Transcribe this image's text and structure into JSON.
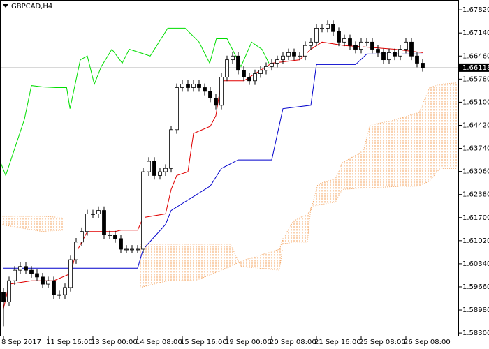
{
  "chart_data": {
    "type": "candlestick",
    "title": "GBPCAD,H4",
    "bull_color": "#ffffff",
    "bear_color": "#000000",
    "open": [
      1.595,
      1.5922,
      1.5984,
      1.6015,
      1.6026,
      1.6015,
      1.6005,
      1.5995,
      1.5974,
      1.5984,
      1.5943,
      1.5943,
      1.5964,
      1.6046,
      1.6098,
      1.6129,
      1.6181,
      1.6181,
      1.6191,
      1.6119,
      1.6119,
      1.6108,
      1.6077,
      1.6077,
      1.6077,
      1.6077,
      1.6305,
      1.6336,
      1.6294,
      1.6305,
      1.6315,
      1.6429,
      1.6553,
      1.6563,
      1.6553,
      1.6563,
      1.6553,
      1.6542,
      1.6522,
      1.6501,
      1.6584,
      1.6635,
      1.6646,
      1.6604,
      1.6584,
      1.6573,
      1.6594,
      1.6604,
      1.6615,
      1.6625,
      1.6635,
      1.6646,
      1.6656,
      1.6646,
      1.6646,
      1.6677,
      1.6687,
      1.6728,
      1.6728,
      1.6739,
      1.6718,
      1.6687,
      1.6697,
      1.6677,
      1.6666,
      1.6687,
      1.6687,
      1.6666,
      1.6656,
      1.6635,
      1.6656,
      1.6646,
      1.6666,
      1.6687,
      1.6646,
      1.6625
    ],
    "high": [
      1.5962,
      1.5996,
      1.6027,
      1.6038,
      1.6038,
      1.6027,
      1.6017,
      1.6007,
      1.5996,
      1.5996,
      1.5955,
      1.5976,
      1.6058,
      1.611,
      1.6141,
      1.6193,
      1.6193,
      1.6203,
      1.6203,
      1.6131,
      1.6131,
      1.612,
      1.6089,
      1.6089,
      1.6089,
      1.6317,
      1.6348,
      1.6348,
      1.6317,
      1.6327,
      1.6441,
      1.6565,
      1.6575,
      1.6575,
      1.6575,
      1.6575,
      1.6565,
      1.6554,
      1.6534,
      1.6596,
      1.6647,
      1.6658,
      1.6658,
      1.6616,
      1.6596,
      1.6606,
      1.6616,
      1.6627,
      1.6637,
      1.6647,
      1.6658,
      1.6668,
      1.6668,
      1.6658,
      1.6689,
      1.6699,
      1.674,
      1.674,
      1.6751,
      1.6751,
      1.673,
      1.6709,
      1.6709,
      1.6689,
      1.6699,
      1.6699,
      1.6699,
      1.6678,
      1.6668,
      1.6668,
      1.6668,
      1.6678,
      1.6699,
      1.6699,
      1.6658,
      1.6637
    ],
    "low": [
      1.585,
      1.591,
      1.5972,
      1.6003,
      1.6003,
      1.5993,
      1.5983,
      1.5962,
      1.5962,
      1.5931,
      1.5931,
      1.5931,
      1.5952,
      1.6034,
      1.6086,
      1.6117,
      1.6169,
      1.6169,
      1.6107,
      1.6107,
      1.6096,
      1.6065,
      1.6065,
      1.6065,
      1.6065,
      1.6065,
      1.6293,
      1.6282,
      1.6282,
      1.6293,
      1.6303,
      1.6417,
      1.6541,
      1.6541,
      1.6541,
      1.6541,
      1.653,
      1.651,
      1.6489,
      1.6489,
      1.6572,
      1.6623,
      1.6592,
      1.6572,
      1.6561,
      1.6561,
      1.6582,
      1.6592,
      1.6603,
      1.6613,
      1.6623,
      1.6634,
      1.6634,
      1.6634,
      1.6634,
      1.6665,
      1.6675,
      1.6716,
      1.6716,
      1.6706,
      1.6675,
      1.6675,
      1.6665,
      1.6654,
      1.6654,
      1.6675,
      1.6654,
      1.6644,
      1.6623,
      1.6623,
      1.6634,
      1.6634,
      1.6654,
      1.6634,
      1.6613,
      1.66
    ],
    "close": [
      1.5922,
      1.5984,
      1.6015,
      1.6026,
      1.6015,
      1.6005,
      1.5995,
      1.5974,
      1.5984,
      1.5943,
      1.5943,
      1.5964,
      1.6046,
      1.6098,
      1.6129,
      1.6181,
      1.6181,
      1.6191,
      1.6119,
      1.6119,
      1.6108,
      1.6077,
      1.6077,
      1.6077,
      1.6077,
      1.6305,
      1.6336,
      1.6294,
      1.6305,
      1.6315,
      1.6429,
      1.6553,
      1.6563,
      1.6553,
      1.6563,
      1.6553,
      1.6542,
      1.6522,
      1.6501,
      1.6584,
      1.6635,
      1.6646,
      1.6604,
      1.6584,
      1.6573,
      1.6594,
      1.6604,
      1.6615,
      1.6625,
      1.6635,
      1.6646,
      1.6656,
      1.6646,
      1.6646,
      1.6677,
      1.6687,
      1.6728,
      1.6728,
      1.6739,
      1.6718,
      1.6687,
      1.6697,
      1.6677,
      1.6666,
      1.6687,
      1.6687,
      1.6666,
      1.6656,
      1.6635,
      1.6656,
      1.6646,
      1.6666,
      1.6687,
      1.6646,
      1.6625,
      1.6612
    ],
    "lines": [
      {
        "color": "#e00000",
        "x": [
          0,
          1,
          5,
          9,
          12,
          13,
          15,
          20,
          21,
          24,
          25,
          29,
          30,
          31,
          33,
          34,
          37,
          38,
          39,
          43,
          48,
          53,
          55,
          57,
          61,
          70,
          75
        ],
        "values": [
          1.5902,
          1.5974,
          1.5984,
          1.5984,
          1.6005,
          1.6067,
          1.6129,
          1.6129,
          1.6133,
          1.6133,
          1.617,
          1.6181,
          1.6253,
          1.6294,
          1.6305,
          1.6418,
          1.6439,
          1.647,
          1.6573,
          1.6573,
          1.6625,
          1.6635,
          1.6666,
          1.6687,
          1.6677,
          1.6666,
          1.6656
        ]
      },
      {
        "color": "#0000cc",
        "x": [
          0,
          24,
          25,
          29,
          30,
          37,
          39,
          42,
          48,
          50,
          55,
          56,
          63,
          65,
          75
        ],
        "values": [
          1.6021,
          1.6021,
          1.6077,
          1.615,
          1.6191,
          1.6263,
          1.6315,
          1.634,
          1.634,
          1.6491,
          1.6501,
          1.6621,
          1.6621,
          1.6652,
          1.6652
        ]
      },
      {
        "color": "#00dd00",
        "x": [
          -0.6,
          0.4,
          3.75,
          5,
          7,
          9.4,
          11.3,
          11.9,
          13.75,
          15,
          16.25,
          17.5,
          19.4,
          21.25,
          22.5,
          24.4,
          26.25,
          29.4,
          32.5,
          35,
          36.9,
          38.1,
          40,
          41.25,
          42.5,
          44.4,
          46.25,
          47.5
        ],
        "values": [
          1.6336,
          1.6294,
          1.646,
          1.6559,
          1.6555,
          1.6553,
          1.6553,
          1.6491,
          1.6635,
          1.6646,
          1.6563,
          1.6615,
          1.6666,
          1.6625,
          1.6666,
          1.6656,
          1.6646,
          1.6728,
          1.6728,
          1.6687,
          1.6625,
          1.6697,
          1.6697,
          1.6656,
          1.6615,
          1.6687,
          1.6666,
          1.6625
        ]
      }
    ],
    "cloud": {
      "color": "#f4a460",
      "x": [
        -0.6,
        6.9,
        10.6,
        17.5,
        24.4,
        29.4,
        34.4,
        40.6,
        42.5,
        49.4,
        50,
        51.9,
        54.4,
        55,
        56.25,
        59.4,
        60.6,
        64.4,
        65.6,
        69.4,
        74.4,
        76.25,
        78.1,
        81.25
      ],
      "span_a": [
        1.615,
        1.6129,
        1.6133,
        null,
        1.5964,
        1.5984,
        1.5984,
        1.6026,
        1.6042,
        1.6077,
        1.6108,
        1.616,
        1.6181,
        1.6191,
        1.6269,
        1.6284,
        1.6331,
        1.6367,
        1.6443,
        1.6455,
        1.648,
        1.6553,
        1.6563,
        1.6567
      ],
      "span_b": [
        1.6174,
        1.6174,
        1.617,
        null,
        1.6092,
        1.6092,
        1.6092,
        1.6092,
        1.6026,
        1.6015,
        1.6092,
        1.6098,
        1.6098,
        1.6201,
        1.6207,
        1.6216,
        1.6253,
        1.6257,
        1.6257,
        1.6261,
        1.6263,
        1.6278,
        1.6315,
        1.6315
      ]
    },
    "last_price": 1.66118,
    "ylim": [
      1.5822,
      1.6809
    ],
    "yticks": [
      {
        "value": 1.6782,
        "label": "1.67820"
      },
      {
        "value": 1.6714,
        "label": "1.67140"
      },
      {
        "value": 1.6646,
        "label": "1.66460"
      },
      {
        "value": 1.6578,
        "label": "1.65780"
      },
      {
        "value": 1.651,
        "label": "1.65100"
      },
      {
        "value": 1.6442,
        "label": "1.64420"
      },
      {
        "value": 1.6374,
        "label": "1.63740"
      },
      {
        "value": 1.6306,
        "label": "1.63060"
      },
      {
        "value": 1.6238,
        "label": "1.62380"
      },
      {
        "value": 1.617,
        "label": "1.61700"
      },
      {
        "value": 1.6102,
        "label": "1.61020"
      },
      {
        "value": 1.6034,
        "label": "1.60340"
      },
      {
        "value": 1.5966,
        "label": "1.59660"
      },
      {
        "value": 1.5898,
        "label": "1.58980"
      },
      {
        "value": 1.583,
        "label": "1.58300"
      }
    ],
    "xlim": [
      -0.625,
      81.5
    ],
    "xticks": [
      {
        "value": 0,
        "label": "8 Sep 2017"
      },
      {
        "value": 8,
        "label": "11 Sep 16:00"
      },
      {
        "value": 16,
        "label": "13 Sep 00:00"
      },
      {
        "value": 24,
        "label": "14 Sep 08:00"
      },
      {
        "value": 32,
        "label": "15 Sep 16:00"
      },
      {
        "value": 40,
        "label": "19 Sep 00:00"
      },
      {
        "value": 48,
        "label": "20 Sep 08:00"
      },
      {
        "value": 56,
        "label": "21 Sep 16:00"
      },
      {
        "value": 64,
        "label": "25 Sep 08:00"
      },
      {
        "value": 72,
        "label": "26 Sep 08:00"
      }
    ]
  }
}
